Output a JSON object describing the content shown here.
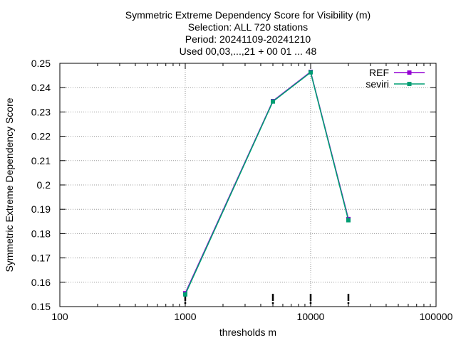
{
  "chart_data": {
    "type": "line",
    "title_lines": [
      "Symmetric Extreme Dependency Score  for Visibility (m)",
      "Selection: ALL    720 stations",
      "Period: 20241109-20241210",
      "Used 00,03,...,21 + 00 01 ... 48"
    ],
    "xlabel": "thresholds m",
    "ylabel": "Symmetric Extreme Dependency Score",
    "xscale": "log",
    "xlim": [
      100,
      100000
    ],
    "ylim": [
      0.15,
      0.25
    ],
    "xticks": [
      100,
      1000,
      10000,
      100000
    ],
    "xtick_labels": [
      "100",
      "1000",
      "10000",
      "100000"
    ],
    "yticks": [
      0.15,
      0.16,
      0.17,
      0.18,
      0.19,
      0.2,
      0.21,
      0.22,
      0.23,
      0.24,
      0.25
    ],
    "ytick_labels": [
      "0.15",
      "0.16",
      "0.17",
      "0.18",
      "0.19",
      "0.2",
      "0.21",
      "0.22",
      "0.23",
      "0.24",
      "0.25"
    ],
    "grid": true,
    "legend_position": "top-right",
    "x": [
      1000,
      5000,
      10000,
      20000
    ],
    "series": [
      {
        "name": "REF",
        "color": "#9400d3",
        "values": [
          0.1555,
          0.2345,
          0.2465,
          0.186
        ]
      },
      {
        "name": "seviri",
        "color": "#009e73",
        "values": [
          0.155,
          0.2343,
          0.2463,
          0.1855
        ]
      }
    ],
    "bottom_markers_x": [
      1000,
      5000,
      10000,
      20000
    ]
  }
}
